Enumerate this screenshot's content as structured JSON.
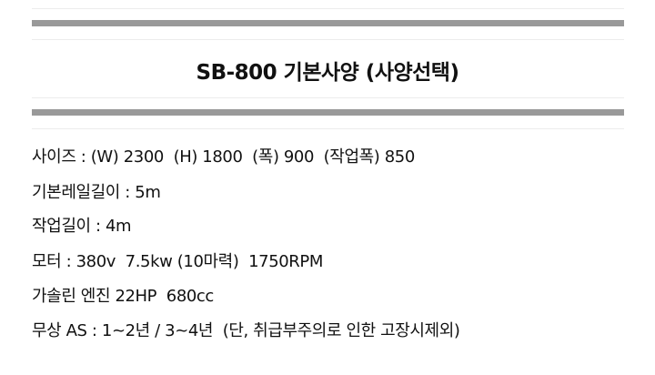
{
  "title": "SB-800 기본사양 (사양선택)",
  "specs": [
    "사이즈 : (W) 2300  (H) 1800  (폭) 900  (작업폭) 850",
    "기본레일길이 : 5m",
    "작업길이 : 4m",
    "모터 : 380v  7.5kw (10마력)  1750RPM",
    "가솔린 엔진 22HP  680cc",
    "무상 AS : 1~2년 / 3~4년  (단, 취급부주의로 인한 고장시제외)"
  ],
  "colors": {
    "divider": "#999999",
    "text": "#111111"
  }
}
